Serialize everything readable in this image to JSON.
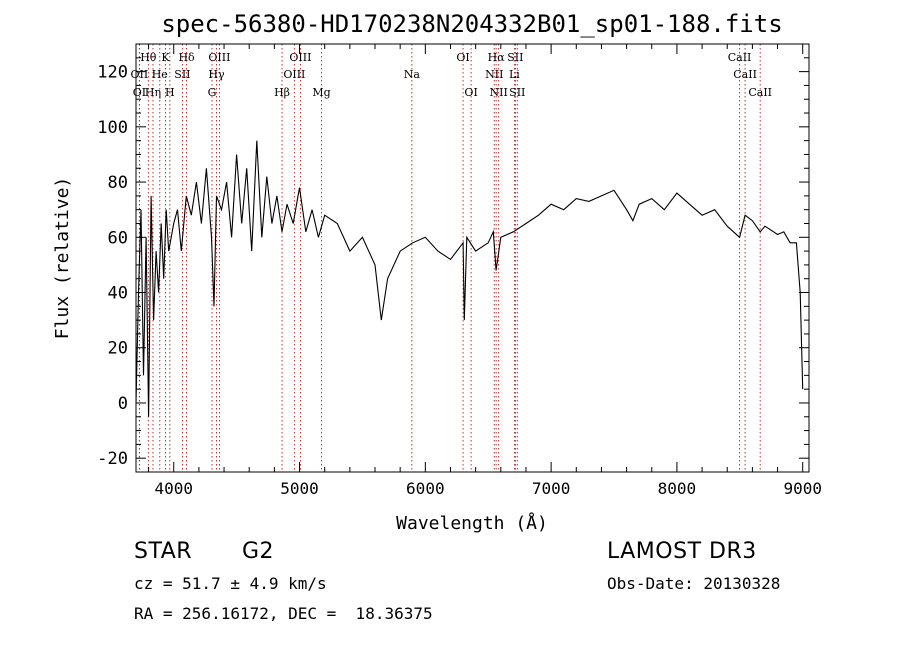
{
  "chart_data": {
    "type": "line",
    "title": "spec-56380-HD170238N204332B01_sp01-188.fits",
    "xlabel": "Wavelength (Å)",
    "ylabel": "Flux (relative)",
    "xlim": [
      3700,
      9050
    ],
    "ylim": [
      -25,
      130
    ],
    "xticks": [
      4000,
      5000,
      6000,
      7000,
      8000,
      9000
    ],
    "yticks": [
      -20,
      0,
      20,
      40,
      60,
      80,
      100,
      120
    ],
    "grid": false,
    "series": [
      {
        "name": "flux",
        "x": [
          3700,
          3720,
          3740,
          3760,
          3780,
          3800,
          3820,
          3840,
          3860,
          3880,
          3900,
          3920,
          3940,
          3960,
          3980,
          4000,
          4030,
          4060,
          4100,
          4140,
          4180,
          4220,
          4260,
          4300,
          4320,
          4340,
          4380,
          4420,
          4460,
          4500,
          4540,
          4580,
          4620,
          4660,
          4700,
          4740,
          4780,
          4820,
          4861,
          4900,
          4950,
          5000,
          5050,
          5100,
          5150,
          5200,
          5300,
          5400,
          5500,
          5600,
          5650,
          5700,
          5800,
          5900,
          6000,
          6100,
          6200,
          6300,
          6310,
          6330,
          6400,
          6500,
          6540,
          6563,
          6600,
          6700,
          6800,
          6900,
          7000,
          7100,
          7200,
          7300,
          7400,
          7500,
          7600,
          7650,
          7700,
          7800,
          7900,
          8000,
          8100,
          8200,
          8300,
          8400,
          8498,
          8542,
          8600,
          8662,
          8700,
          8800,
          8850,
          8900,
          8950,
          8980,
          9000
        ],
        "values": [
          0,
          40,
          70,
          10,
          60,
          -5,
          75,
          30,
          55,
          40,
          65,
          45,
          70,
          55,
          60,
          65,
          70,
          55,
          75,
          68,
          80,
          65,
          85,
          60,
          35,
          75,
          70,
          80,
          60,
          90,
          65,
          85,
          55,
          95,
          60,
          82,
          65,
          75,
          62,
          72,
          65,
          78,
          62,
          70,
          60,
          68,
          65,
          55,
          60,
          50,
          30,
          45,
          55,
          58,
          60,
          55,
          52,
          58,
          30,
          60,
          55,
          58,
          62,
          48,
          60,
          62,
          65,
          68,
          72,
          70,
          74,
          73,
          75,
          77,
          70,
          66,
          72,
          74,
          70,
          76,
          72,
          68,
          70,
          64,
          60,
          68,
          66,
          62,
          64,
          61,
          62,
          58,
          58,
          40,
          5
        ]
      }
    ],
    "lines": [
      {
        "label": "Hθ",
        "wl": 3798,
        "row": 1
      },
      {
        "label": "K",
        "wl": 3934,
        "row": 1
      },
      {
        "label": "Hδ",
        "wl": 4102,
        "row": 1
      },
      {
        "label": "OIII",
        "wl": 4363,
        "row": 1
      },
      {
        "label": "OIII",
        "wl": 5007,
        "row": 1
      },
      {
        "label": "OI",
        "wl": 6300,
        "row": 1
      },
      {
        "label": "Hα",
        "wl": 6563,
        "row": 1
      },
      {
        "label": "SII",
        "wl": 6716,
        "row": 1
      },
      {
        "label": "CaII",
        "wl": 8498,
        "row": 1
      },
      {
        "label": "OII",
        "wl": 3727,
        "row": 2
      },
      {
        "label": "He",
        "wl": 3889,
        "row": 2
      },
      {
        "label": "SII",
        "wl": 4069,
        "row": 2
      },
      {
        "label": "Hγ",
        "wl": 4340,
        "row": 2
      },
      {
        "label": "OIII",
        "wl": 4959,
        "row": 2
      },
      {
        "label": "Na",
        "wl": 5893,
        "row": 2
      },
      {
        "label": "NII",
        "wl": 6548,
        "row": 2
      },
      {
        "label": "Li",
        "wl": 6708,
        "row": 2
      },
      {
        "label": "CaII",
        "wl": 8542,
        "row": 2
      },
      {
        "label": "OI",
        "wl": 3727,
        "row": 3
      },
      {
        "label": "Hη",
        "wl": 3835,
        "row": 3
      },
      {
        "label": "H",
        "wl": 3969,
        "row": 3
      },
      {
        "label": "G",
        "wl": 4304,
        "row": 3
      },
      {
        "label": "Hβ",
        "wl": 4861,
        "row": 3
      },
      {
        "label": "Mg",
        "wl": 5175,
        "row": 3
      },
      {
        "label": "OI",
        "wl": 6364,
        "row": 3
      },
      {
        "label": "NII",
        "wl": 6583,
        "row": 3
      },
      {
        "label": "SII",
        "wl": 6731,
        "row": 3
      },
      {
        "label": "CaII",
        "wl": 8662,
        "row": 3
      }
    ]
  },
  "info": {
    "object_class": "STAR",
    "subclass": "G2",
    "survey": "LAMOST DR3",
    "redshift": "cz = 51.7 ± 4.9 km/s",
    "obs_date": "Obs-Date: 20130328",
    "coords": "RA = 256.16172, DEC =  18.36375"
  },
  "colors": {
    "line_marker": "#b22222",
    "spectrum": "#000000",
    "axis": "#000000"
  }
}
